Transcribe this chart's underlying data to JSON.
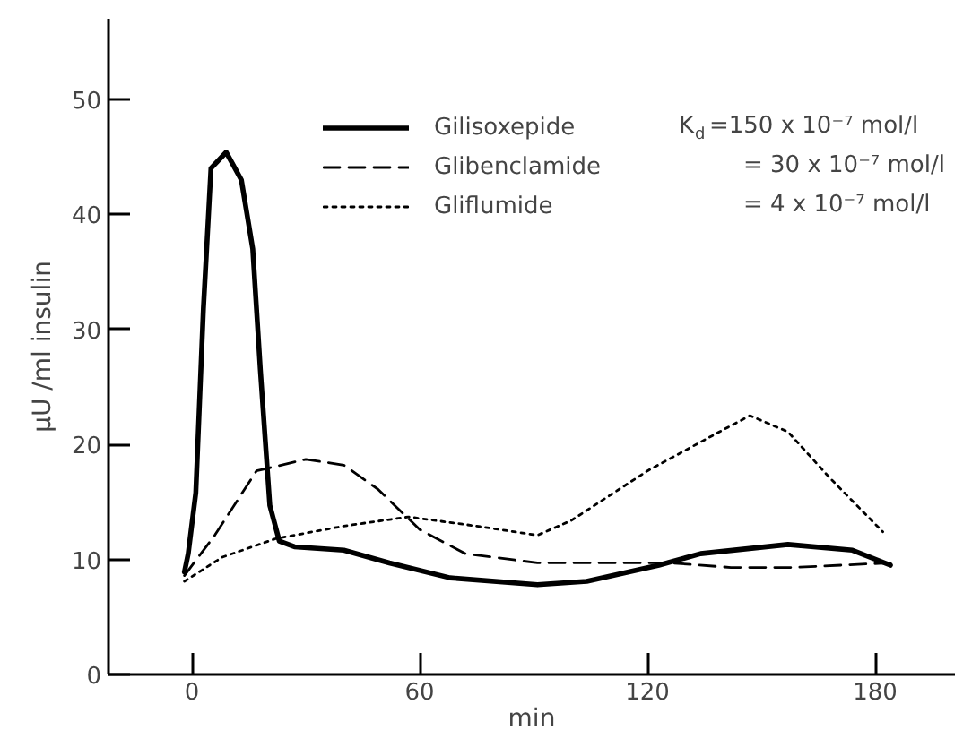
{
  "chart_data": {
    "type": "line",
    "xlabel": "min",
    "ylabel": "μU /ml insulin",
    "xlim": [
      -22,
      201
    ],
    "ylim": [
      0,
      57
    ],
    "xticks": [
      0,
      60,
      120,
      180
    ],
    "yticks": [
      0,
      10,
      20,
      30,
      40,
      50
    ],
    "grid": false,
    "legend": "top",
    "marker": "none",
    "series": [
      {
        "name": "Gilisoxepide",
        "color": "#000000",
        "line_style": "solid",
        "x": [
          -2,
          -1,
          1,
          3,
          5,
          9,
          13,
          16,
          18,
          20.5,
          23,
          27,
          40,
          52,
          68,
          91,
          104,
          123,
          134,
          157,
          174,
          184
        ],
        "values": [
          8.9,
          10.5,
          15.8,
          31.8,
          44,
          45.4,
          43,
          37,
          26.5,
          14.7,
          11.6,
          11.1,
          10.8,
          9.7,
          8.4,
          7.8,
          8.1,
          9.5,
          10.5,
          11.3,
          10.8,
          9.5
        ]
      },
      {
        "name": "Glibenclamide",
        "color": "#000000",
        "line_style": "dashed",
        "x": [
          -2,
          6,
          17,
          30,
          40,
          49,
          60,
          72,
          91,
          110,
          126,
          142,
          158,
          184
        ],
        "values": [
          8.6,
          12.1,
          17.7,
          18.7,
          18.2,
          16.1,
          12.6,
          10.5,
          9.7,
          9.7,
          9.7,
          9.3,
          9.3,
          9.7
        ]
      },
      {
        "name": "Gliflumide",
        "color": "#000000",
        "line_style": "dotted",
        "x": [
          -2,
          8,
          22,
          40,
          57,
          75,
          91,
          100,
          120,
          139,
          147,
          157,
          168,
          182
        ],
        "values": [
          8.1,
          10.2,
          11.8,
          12.9,
          13.7,
          12.9,
          12.1,
          13.4,
          17.7,
          21.1,
          22.5,
          21.1,
          17.1,
          12.4
        ]
      }
    ],
    "annotations": [
      "K$_{d}$ =150 x 10⁻⁷ mol/l",
      "= 30 x 10⁻⁷ mol/l",
      "= 4 x 10⁻⁷ mol/l"
    ]
  }
}
